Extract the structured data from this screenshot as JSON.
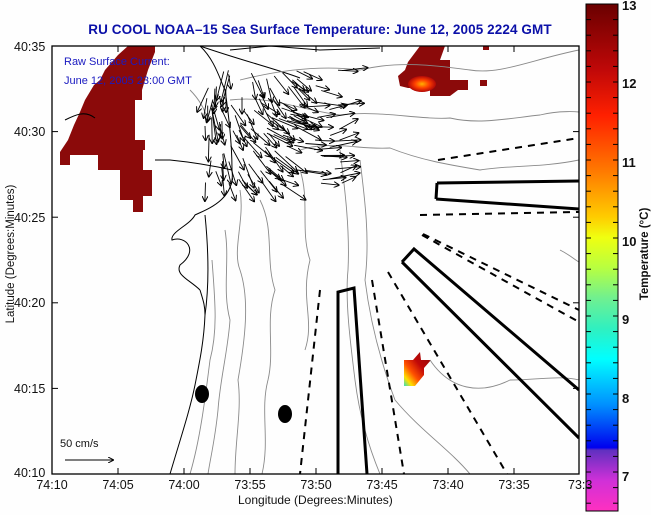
{
  "chart_data": {
    "type": "map",
    "title": "RU COOL  NOAA–15  Sea Surface Temperature:  June 12, 2005 2224 GMT",
    "xlabel": "Longitude (Degrees:Minutes)",
    "ylabel": "Latitude (Degrees:Minutes)",
    "x_ticks": [
      "74:10",
      "74:05",
      "74:00",
      "73:55",
      "73:50",
      "73:45",
      "73:40",
      "73:35",
      "73:3"
    ],
    "y_ticks": [
      "40:35",
      "40:30",
      "40:25",
      "40:20",
      "40:15",
      "40:10"
    ],
    "colorbar": {
      "label": "Temperature (°C)",
      "range": [
        6.6,
        13
      ],
      "ticks": [
        "13",
        "12",
        "11",
        "10",
        "9",
        "8",
        "7"
      ],
      "colors": [
        "#6a0000",
        "#a00808",
        "#ff1a00",
        "#ff7a00",
        "#ffd800",
        "#e8ff20",
        "#80f080",
        "#00ffff",
        "#0090ff",
        "#0000ff",
        "#6020c0",
        "#ff30d0"
      ]
    },
    "annotation": {
      "line1": "Raw Surface Current:",
      "line2": "June 12, 2005 23:00 GMT"
    },
    "scale_arrow": "50 cm/s",
    "colors": {
      "sst_dark": "#8b0a0a",
      "title": "#0b10a8",
      "contour": "#8a8a8a"
    }
  }
}
